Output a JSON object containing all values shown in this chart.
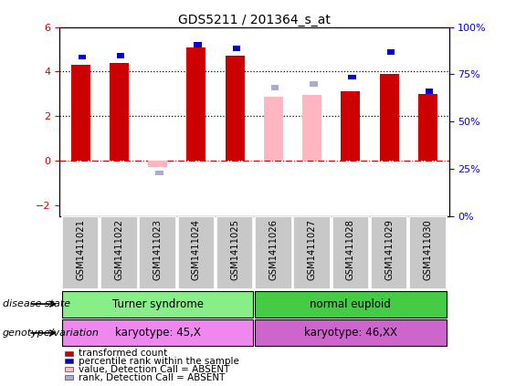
{
  "title": "GDS5211 / 201364_s_at",
  "samples": [
    "GSM1411021",
    "GSM1411022",
    "GSM1411023",
    "GSM1411024",
    "GSM1411025",
    "GSM1411026",
    "GSM1411027",
    "GSM1411028",
    "GSM1411029",
    "GSM1411030"
  ],
  "transformed_count": [
    4.3,
    4.4,
    null,
    5.1,
    4.7,
    null,
    null,
    3.1,
    3.9,
    3.0
  ],
  "transformed_count_absent": [
    null,
    null,
    -0.3,
    null,
    null,
    2.85,
    2.95,
    null,
    null,
    null
  ],
  "percentile_rank": [
    83,
    84,
    null,
    90,
    88,
    null,
    null,
    72,
    86,
    64
  ],
  "percentile_rank_absent": [
    null,
    null,
    18,
    null,
    null,
    66,
    68,
    null,
    null,
    null
  ],
  "ylim": [
    -2.5,
    6.0
  ],
  "y2lim": [
    0,
    100
  ],
  "yticks": [
    -2,
    0,
    2,
    4,
    6
  ],
  "y2ticks_vals": [
    0,
    25,
    50,
    75,
    100
  ],
  "y2ticks_labels": [
    "0%",
    "25%",
    "50%",
    "75%",
    "100%"
  ],
  "bar_color_red": "#CC0000",
  "bar_color_pink": "#FFB6C1",
  "dot_color_blue": "#0000CC",
  "dot_color_lightblue": "#AAAADD",
  "bar_width": 0.5,
  "disease_state_groups": [
    {
      "label": "Turner syndrome",
      "start": 0,
      "end": 4,
      "color": "#88EE88"
    },
    {
      "label": "normal euploid",
      "start": 5,
      "end": 9,
      "color": "#44CC44"
    }
  ],
  "genotype_groups": [
    {
      "label": "karyotype: 45,X",
      "start": 0,
      "end": 4,
      "color": "#EE88EE"
    },
    {
      "label": "karyotype: 46,XX",
      "start": 5,
      "end": 9,
      "color": "#CC66CC"
    }
  ],
  "legend_items": [
    {
      "label": "transformed count",
      "color": "#CC0000"
    },
    {
      "label": "percentile rank within the sample",
      "color": "#0000CC"
    },
    {
      "label": "value, Detection Call = ABSENT",
      "color": "#FFB6C1"
    },
    {
      "label": "rank, Detection Call = ABSENT",
      "color": "#AAAADD"
    }
  ],
  "annotation_left": "disease state",
  "annotation_left2": "genotype/variation",
  "xticklabel_bgcolor": "#C8C8C8"
}
